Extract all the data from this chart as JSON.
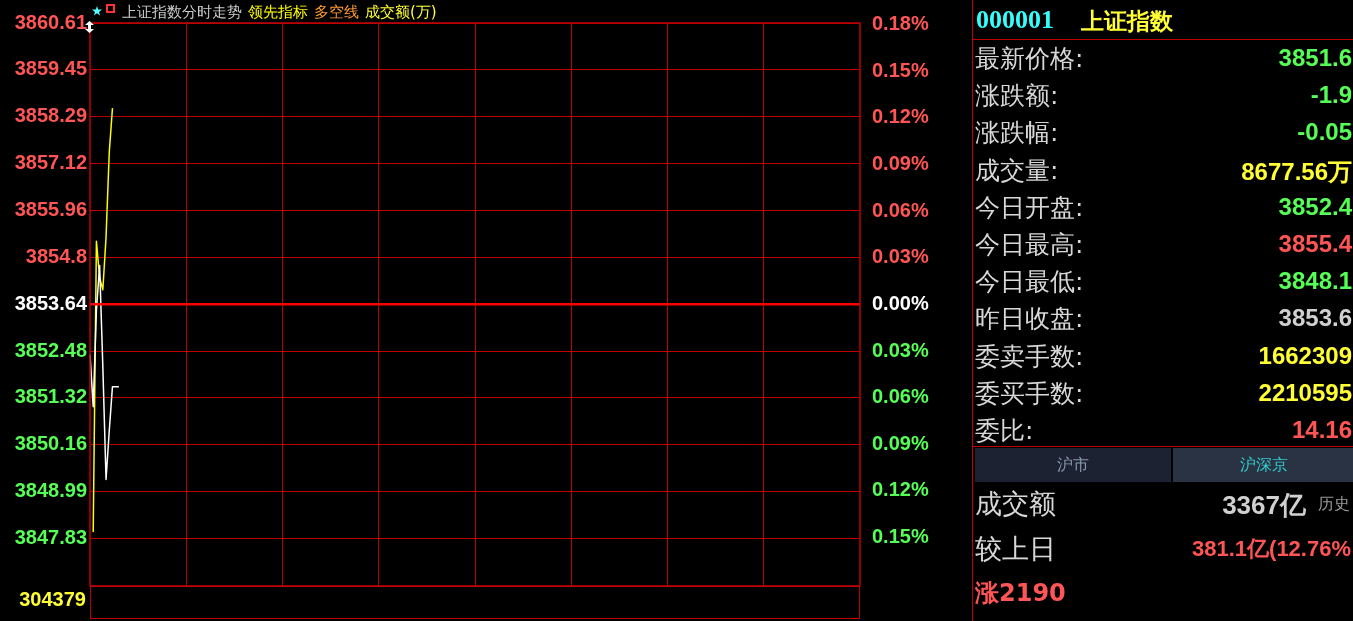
{
  "chart_data": [
    {
      "type": "line",
      "title": "上证指数分时走势",
      "categories": [
        null,
        null,
        null,
        null,
        null,
        null,
        null,
        null,
        null,
        null,
        null,
        null,
        null,
        null,
        null,
        null,
        null,
        null,
        null,
        null,
        null,
        null,
        null,
        null,
        null,
        null,
        null,
        null,
        null,
        null,
        null,
        null,
        null,
        null,
        null,
        null,
        null,
        null,
        null,
        null,
        null,
        null,
        null,
        null,
        null,
        null,
        null,
        null,
        null,
        null,
        null,
        null,
        null,
        null,
        null,
        null,
        null,
        null,
        null,
        null,
        null,
        null,
        null,
        null,
        null,
        null,
        null,
        null,
        null,
        null,
        null,
        null,
        null,
        null,
        null,
        null,
        null,
        null,
        null,
        null,
        null,
        null,
        null,
        null,
        null,
        null,
        null,
        null,
        null,
        null,
        null,
        null,
        null,
        null,
        null,
        null,
        null,
        null,
        null,
        null,
        null,
        null,
        null,
        null,
        null,
        null,
        null,
        null,
        null,
        null,
        null,
        null,
        null,
        null,
        null,
        null,
        null,
        null,
        null,
        null,
        null,
        null,
        null,
        null,
        null,
        null,
        null,
        null,
        null,
        null,
        null,
        null,
        null,
        null,
        null,
        null,
        null,
        null,
        null,
        null,
        null,
        null,
        null,
        null,
        null,
        null,
        null,
        null,
        null,
        null,
        null,
        null,
        null,
        null,
        null,
        null,
        null,
        null,
        null,
        null,
        null,
        null,
        null,
        null,
        null,
        null,
        null,
        null,
        null,
        null,
        null,
        null,
        null,
        null,
        null,
        null,
        null,
        null,
        null,
        null,
        null,
        null,
        null,
        null,
        null,
        null,
        null,
        null,
        null,
        null,
        null,
        null,
        null,
        null,
        null,
        null,
        null,
        null,
        null,
        null,
        null,
        null,
        null,
        null,
        null,
        null,
        null,
        null,
        null,
        null,
        null,
        null,
        null,
        null,
        null,
        null,
        null,
        null,
        null,
        null,
        null,
        null,
        null,
        null,
        null,
        null,
        null,
        null,
        null,
        null,
        null,
        null,
        null,
        null,
        null,
        null,
        null,
        null,
        null,
        null,
        null
      ],
      "series": [
        {
          "color": "#ffffff",
          "values": [
            3852.4,
            3851.1,
            3853.5,
            3854.6,
            3852.1,
            3849.3,
            3850.5,
            3851.6,
            3851.6,
            3851.6,
            null,
            null,
            null,
            null,
            null,
            null,
            null,
            null,
            null,
            null,
            null,
            null,
            null,
            null,
            null,
            null,
            null,
            null,
            null,
            null,
            null,
            null,
            null,
            null,
            null,
            null,
            null,
            null,
            null,
            null,
            null,
            null,
            null,
            null,
            null,
            null,
            null,
            null,
            null,
            null,
            null,
            null,
            null,
            null,
            null,
            null,
            null,
            null,
            null,
            null,
            null,
            null,
            null,
            null,
            null,
            null,
            null,
            null,
            null,
            null,
            null,
            null,
            null,
            null,
            null,
            null,
            null,
            null,
            null,
            null,
            null,
            null,
            null,
            null,
            null,
            null,
            null,
            null,
            null,
            null,
            null,
            null,
            null,
            null,
            null,
            null,
            null,
            null,
            null,
            null,
            null,
            null,
            null,
            null,
            null,
            null,
            null,
            null,
            null,
            null,
            null,
            null,
            null,
            null,
            null,
            null,
            null,
            null,
            null,
            null,
            null,
            null,
            null,
            null,
            null,
            null,
            null,
            null,
            null,
            null,
            null,
            null,
            null,
            null,
            null,
            null,
            null,
            null,
            null,
            null,
            null,
            null,
            null,
            null,
            null,
            null,
            null,
            null,
            null,
            null,
            null,
            null,
            null,
            null,
            null,
            null,
            null,
            null,
            null,
            null,
            null,
            null,
            null,
            null,
            null,
            null,
            null,
            null,
            null,
            null,
            null,
            null,
            null,
            null,
            null,
            null,
            null,
            null,
            null,
            null,
            null,
            null,
            null,
            null,
            null,
            null,
            null,
            null,
            null,
            null,
            null,
            null,
            null,
            null,
            null,
            null,
            null,
            null,
            null,
            null,
            null,
            null,
            null,
            null,
            null,
            null,
            null,
            null,
            null,
            null,
            null,
            null,
            null,
            null,
            null,
            null,
            null,
            null,
            null,
            null,
            null,
            null,
            null,
            null,
            null,
            null,
            null,
            null,
            null,
            null,
            null,
            null,
            null,
            null,
            null,
            null,
            null,
            null,
            null,
            null,
            null
          ]
        },
        {
          "name": "领先指标",
          "color": "#ffff00",
          "values": [
            null,
            3848.0,
            3855.2,
            3854.3,
            3854.0,
            3855.3,
            3857.4,
            3858.5,
            null,
            null,
            null,
            null,
            null,
            null,
            null,
            null,
            null,
            null,
            null,
            null,
            null,
            null,
            null,
            null,
            null,
            null,
            null,
            null,
            null,
            null,
            null,
            null,
            null,
            null,
            null,
            null,
            null,
            null,
            null,
            null,
            null,
            null,
            null,
            null,
            null,
            null,
            null,
            null,
            null,
            null,
            null,
            null,
            null,
            null,
            null,
            null,
            null,
            null,
            null,
            null,
            null,
            null,
            null,
            null,
            null,
            null,
            null,
            null,
            null,
            null,
            null,
            null,
            null,
            null,
            null,
            null,
            null,
            null,
            null,
            null,
            null,
            null,
            null,
            null,
            null,
            null,
            null,
            null,
            null,
            null,
            null,
            null,
            null,
            null,
            null,
            null,
            null,
            null,
            null,
            null,
            null,
            null,
            null,
            null,
            null,
            null,
            null,
            null,
            null,
            null,
            null,
            null,
            null,
            null,
            null,
            null,
            null,
            null,
            null,
            null,
            null,
            null,
            null,
            null,
            null,
            null,
            null,
            null,
            null,
            null,
            null,
            null,
            null,
            null,
            null,
            null,
            null,
            null,
            null,
            null,
            null,
            null,
            null,
            null,
            null,
            null,
            null,
            null,
            null,
            null,
            null,
            null,
            null,
            null,
            null,
            null,
            null,
            null,
            null,
            null,
            null,
            null,
            null,
            null,
            null,
            null,
            null,
            null,
            null,
            null,
            null,
            null,
            null,
            null,
            null,
            null,
            null,
            null,
            null,
            null,
            null,
            null,
            null,
            null,
            null,
            null,
            null,
            null,
            null,
            null,
            null,
            null,
            null,
            null,
            null,
            null,
            null,
            null,
            null,
            null,
            null,
            null,
            null,
            null,
            null,
            null,
            null,
            null,
            null,
            null,
            null,
            null,
            null,
            null,
            null,
            null,
            null,
            null,
            null,
            null,
            null,
            null,
            null,
            null,
            null,
            null,
            null,
            null,
            null,
            null,
            null,
            null,
            null,
            null,
            null,
            null,
            null,
            null,
            null,
            null,
            null
          ]
        }
      ],
      "ylim": [
        3846.66,
        3860.61
      ],
      "yticks": [
        3860.61,
        3859.45,
        3858.29,
        3857.12,
        3855.96,
        3854.8,
        3853.64,
        3852.48,
        3851.32,
        3850.16,
        3848.99,
        3847.83
      ],
      "y2lim": [
        -0.1811,
        0.1809
      ],
      "y2ticks": [
        {
          "value": 0.18,
          "label": "0.18%"
        },
        {
          "value": 0.15,
          "label": "0.15%"
        },
        {
          "value": 0.12,
          "label": "0.12%"
        },
        {
          "value": 0.09,
          "label": "0.09%"
        },
        {
          "value": 0.06,
          "label": "0.06%"
        },
        {
          "value": 0.03,
          "label": "0.03%"
        },
        {
          "value": 0,
          "label": "0.00%"
        },
        {
          "value": -0.03,
          "label": "0.03%"
        },
        {
          "value": -0.06,
          "label": "0.06%"
        },
        {
          "value": -0.09,
          "label": "0.09%"
        },
        {
          "value": -0.12,
          "label": "0.12%"
        },
        {
          "value": -0.15,
          "label": "0.15%"
        }
      ],
      "ref_lines": [
        {
          "axis": "y",
          "value": 3853.64,
          "color": "#ff0000"
        }
      ],
      "grid": true,
      "legend": "top left",
      "marker": "none",
      "line_style": "solid",
      "tick_labels": "y",
      "annotations": [
        "多空线",
        "成交额(万)",
        "304379"
      ]
    },
    {
      "type": "other",
      "annotations": [
        "000001",
        "上证指数",
        "最新价格:",
        "3851.6",
        "涨跌额:",
        "-1.9",
        "涨跌幅:",
        "-0.05",
        "成交量:",
        "8677.56万",
        "今日开盘:",
        "3852.4",
        "今日最高:",
        "3855.4",
        "今日最低:",
        "3848.1",
        "昨日收盘:",
        "3853.6",
        "委卖手数:",
        "1662309",
        "委买手数:",
        "2210595",
        "委比:",
        "14.16",
        "沪市",
        "沪深京",
        "成交额",
        "3367亿",
        "历史",
        "较上日",
        "381.1亿(12.76%",
        "涨2190"
      ],
      "colors": [
        "#33ffff",
        "#ffff33",
        "#d8d8d8",
        "#55ff55",
        "#d8d8d8",
        "#55ff55",
        "#d8d8d8",
        "#55ff55",
        "#d8d8d8",
        "#ffff33",
        "#d8d8d8",
        "#55ff55",
        "#d8d8d8",
        "#ff5555",
        "#d8d8d8",
        "#55ff55",
        "#d8d8d8",
        "#d0d0d0",
        "#d8d8d8",
        "#ffff33",
        "#d8d8d8",
        "#ffff33",
        "#d8d8d8",
        "#ff5555",
        "#8899aa",
        "#33cccc",
        "#d8d8d8",
        "#d0d0d0",
        "#999999",
        "#d8d8d8",
        "#ff5555",
        "#ff5555"
      ]
    }
  ]
}
